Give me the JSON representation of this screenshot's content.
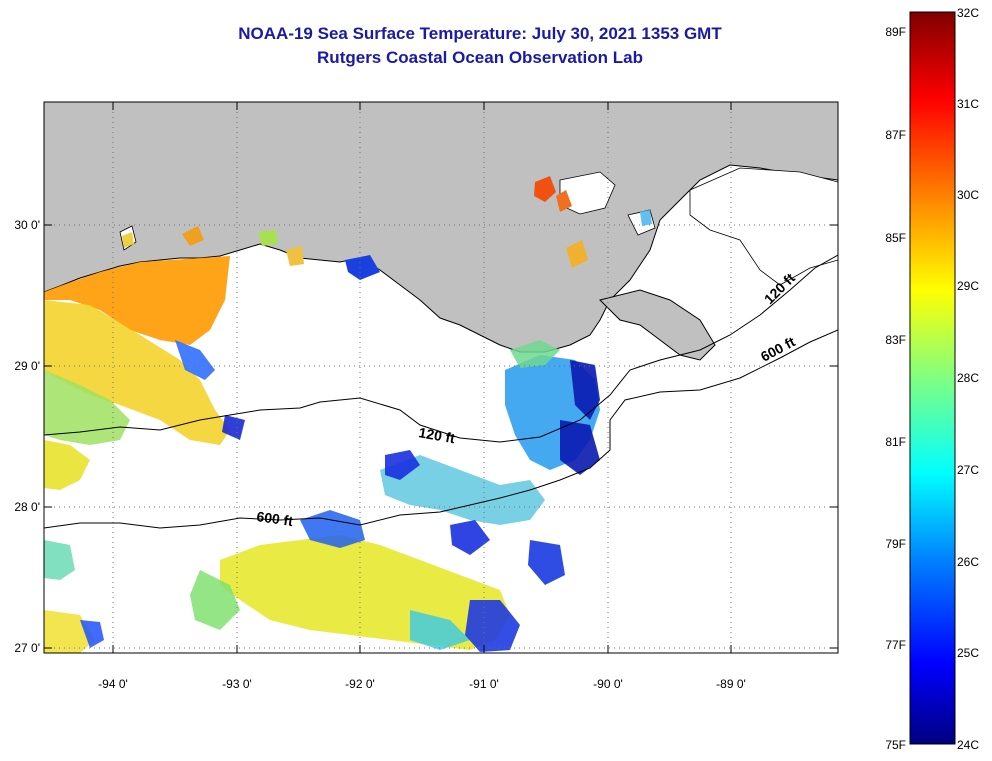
{
  "header": {
    "title": "NOAA-19 Sea Surface Temperature:  July 30, 2021 1353 GMT",
    "subtitle": "Rutgers Coastal Ocean Observation Lab"
  },
  "map": {
    "lat_labels": [
      "30 0'",
      "29 0'",
      "28 0'",
      "27 0'"
    ],
    "lon_labels": [
      "-94 0'",
      "-93 0'",
      "-92 0'",
      "-91 0'",
      "-90 0'",
      "-89 0'"
    ],
    "contour_labels": [
      "120 ft",
      "600 ft",
      "120 ft",
      "600 ft"
    ],
    "colors": {
      "land": "#c0c0c0",
      "ocean_nodata": "#ffffff",
      "grid": "#707070"
    }
  },
  "colorbar": {
    "fahrenheit_labels": [
      "89F",
      "87F",
      "85F",
      "83F",
      "81F",
      "79F",
      "77F",
      "75F"
    ],
    "celsius_labels": [
      "32C",
      "31C",
      "30C",
      "29C",
      "28C",
      "27C",
      "26C",
      "25C",
      "24C"
    ],
    "stops": [
      "#000080",
      "#0000ff",
      "#0080ff",
      "#00ffff",
      "#80ff80",
      "#ffff00",
      "#ff8000",
      "#ff0000",
      "#800000"
    ]
  }
}
